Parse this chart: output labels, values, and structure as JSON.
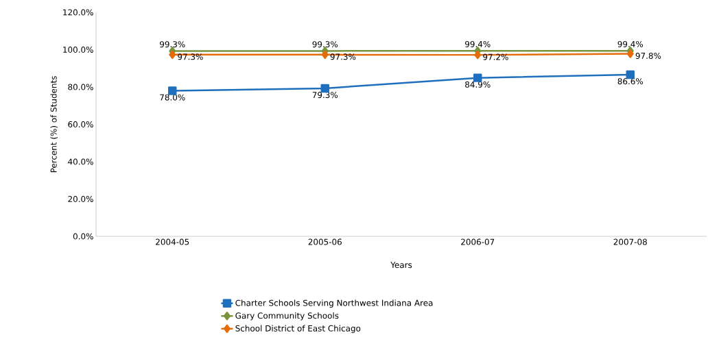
{
  "chart_data": {
    "type": "line",
    "xlabel": "Years",
    "ylabel": "Percent (%) of Students",
    "categories": [
      "2004-05",
      "2005-06",
      "2006-07",
      "2007-08"
    ],
    "series": [
      {
        "name": "Charter Schools Serving Northwest Indiana Area",
        "color": "#1f6fbf",
        "marker": "square",
        "values": [
          78.0,
          79.3,
          84.9,
          86.6
        ],
        "value_labels": [
          "78.0%",
          "79.3%",
          "84.9%",
          "86.6%"
        ]
      },
      {
        "name": "Gary Community Schools",
        "color": "#77933c",
        "marker": "diamond",
        "values": [
          99.3,
          99.3,
          99.4,
          99.4
        ],
        "value_labels": [
          "99.3%",
          "99.3%",
          "99.4%",
          "99.4%"
        ]
      },
      {
        "name": "School District of East Chicago",
        "color": "#e46c0a",
        "marker": "diamond",
        "values": [
          97.3,
          97.3,
          97.2,
          97.8
        ],
        "value_labels": [
          "97.3%",
          "97.3%",
          "97.2%",
          "97.8%"
        ]
      }
    ],
    "ylim": [
      0,
      120
    ],
    "yticks": [
      {
        "value": 0,
        "label": "0.0%"
      },
      {
        "value": 20,
        "label": "20.0%"
      },
      {
        "value": 40,
        "label": "40.0%"
      },
      {
        "value": 60,
        "label": "60.0%"
      },
      {
        "value": 80,
        "label": "80.0%"
      },
      {
        "value": 100,
        "label": "100.0%"
      },
      {
        "value": 120,
        "label": "120.0%"
      }
    ],
    "grid": false,
    "legend": "bottom",
    "line_style": "solid"
  }
}
